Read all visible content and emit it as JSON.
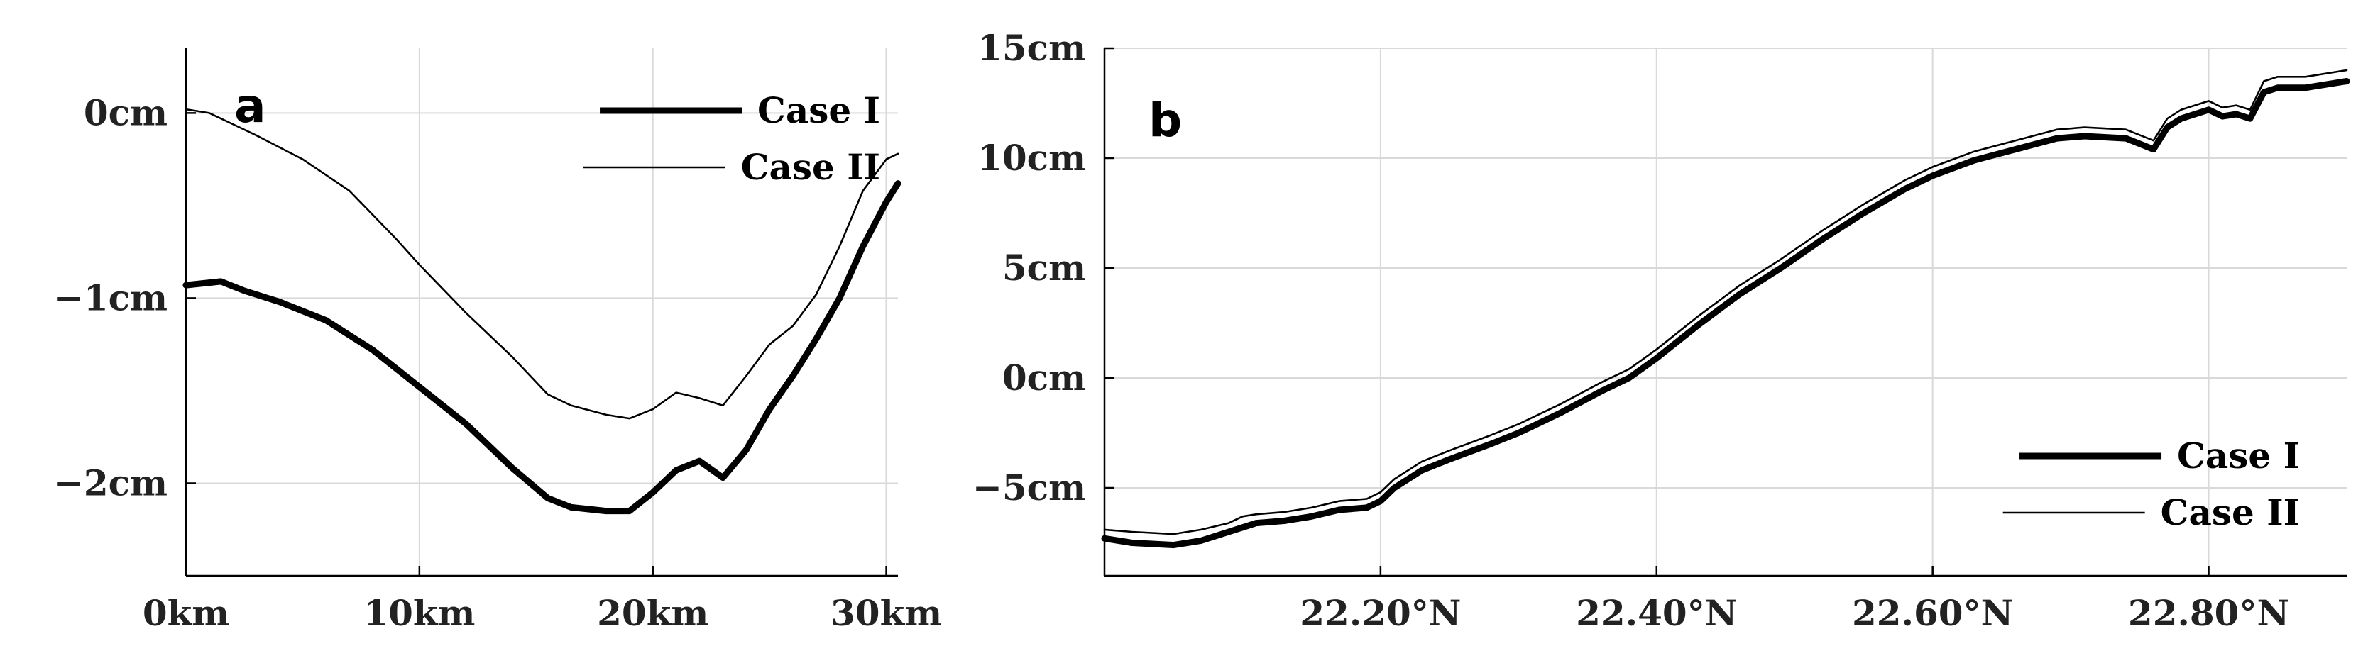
{
  "chart_data": [
    {
      "type": "line",
      "panel_label": "a",
      "xlim": [
        0,
        30.5
      ],
      "ylim": [
        -2.5,
        0.35
      ],
      "xticks": [
        0,
        10,
        20,
        30
      ],
      "xtick_labels": [
        "0km",
        "10km",
        "20km",
        "30km"
      ],
      "yticks": [
        0,
        -1,
        -2
      ],
      "ytick_labels": [
        "0cm",
        "−1cm",
        "−2cm"
      ],
      "grid": true,
      "legend_position": "top-right",
      "series": [
        {
          "name": "Case I",
          "style": "thick",
          "x": [
            0,
            1.5,
            2.5,
            4,
            6,
            8,
            10,
            12,
            14,
            15.5,
            16.5,
            18,
            19,
            20,
            21,
            22,
            23,
            24,
            25,
            26,
            27,
            28,
            29,
            30,
            30.5
          ],
          "y": [
            -0.93,
            -0.91,
            -0.96,
            -1.02,
            -1.12,
            -1.28,
            -1.48,
            -1.68,
            -1.92,
            -2.08,
            -2.13,
            -2.15,
            -2.15,
            -2.05,
            -1.93,
            -1.88,
            -1.97,
            -1.82,
            -1.6,
            -1.42,
            -1.22,
            -1.0,
            -0.72,
            -0.48,
            -0.38
          ]
        },
        {
          "name": "Case II",
          "style": "thin",
          "x": [
            0,
            1,
            2,
            3,
            5,
            7,
            9,
            10,
            12,
            14,
            15.5,
            16.5,
            18,
            19,
            20,
            21,
            22,
            23,
            24,
            25,
            26,
            27,
            28,
            29,
            30,
            30.5
          ],
          "y": [
            0.02,
            0.0,
            -0.06,
            -0.12,
            -0.25,
            -0.42,
            -0.68,
            -0.82,
            -1.08,
            -1.32,
            -1.52,
            -1.58,
            -1.63,
            -1.65,
            -1.6,
            -1.51,
            -1.54,
            -1.58,
            -1.42,
            -1.25,
            -1.15,
            -0.98,
            -0.72,
            -0.42,
            -0.25,
            -0.22
          ]
        }
      ]
    },
    {
      "type": "line",
      "panel_label": "b",
      "xlim": [
        22.0,
        22.9
      ],
      "ylim": [
        -9,
        15
      ],
      "xticks": [
        22.2,
        22.4,
        22.6,
        22.8
      ],
      "xtick_labels": [
        "22.20°N",
        "22.40°N",
        "22.60°N",
        "22.80°N"
      ],
      "yticks": [
        15,
        10,
        5,
        0,
        -5
      ],
      "ytick_labels": [
        "15cm",
        "10cm",
        "5cm",
        "0cm",
        "−5cm"
      ],
      "grid": true,
      "legend_position": "bottom-right",
      "series": [
        {
          "name": "Case I",
          "style": "thick",
          "x": [
            22.0,
            22.02,
            22.05,
            22.07,
            22.09,
            22.1,
            22.11,
            22.13,
            22.15,
            22.17,
            22.19,
            22.2,
            22.21,
            22.23,
            22.25,
            22.28,
            22.3,
            22.33,
            22.36,
            22.38,
            22.4,
            22.43,
            22.46,
            22.49,
            22.52,
            22.55,
            22.58,
            22.6,
            22.63,
            22.66,
            22.69,
            22.71,
            22.74,
            22.76,
            22.77,
            22.78,
            22.8,
            22.81,
            22.82,
            22.83,
            22.84,
            22.85,
            22.87,
            22.9
          ],
          "y": [
            -7.3,
            -7.5,
            -7.6,
            -7.4,
            -7.0,
            -6.8,
            -6.6,
            -6.5,
            -6.3,
            -6.0,
            -5.9,
            -5.6,
            -5.0,
            -4.2,
            -3.7,
            -3.0,
            -2.5,
            -1.6,
            -0.6,
            0.0,
            0.9,
            2.4,
            3.8,
            5.0,
            6.3,
            7.5,
            8.6,
            9.2,
            9.9,
            10.4,
            10.9,
            11.0,
            10.9,
            10.4,
            11.4,
            11.8,
            12.2,
            11.9,
            12.0,
            11.8,
            13.0,
            13.2,
            13.2,
            13.5
          ]
        },
        {
          "name": "Case II",
          "style": "thin",
          "x": [
            22.0,
            22.02,
            22.05,
            22.07,
            22.09,
            22.1,
            22.11,
            22.13,
            22.15,
            22.17,
            22.19,
            22.2,
            22.21,
            22.23,
            22.25,
            22.28,
            22.3,
            22.33,
            22.36,
            22.38,
            22.4,
            22.43,
            22.46,
            22.49,
            22.52,
            22.55,
            22.58,
            22.6,
            22.63,
            22.66,
            22.69,
            22.71,
            22.74,
            22.76,
            22.77,
            22.78,
            22.8,
            22.81,
            22.82,
            22.83,
            22.84,
            22.85,
            22.87,
            22.9
          ],
          "y": [
            -6.9,
            -7.0,
            -7.1,
            -6.9,
            -6.6,
            -6.3,
            -6.2,
            -6.1,
            -5.9,
            -5.6,
            -5.5,
            -5.2,
            -4.6,
            -3.8,
            -3.3,
            -2.6,
            -2.1,
            -1.2,
            -0.2,
            0.4,
            1.3,
            2.8,
            4.2,
            5.4,
            6.7,
            7.9,
            9.0,
            9.6,
            10.3,
            10.8,
            11.3,
            11.4,
            11.3,
            10.8,
            11.8,
            12.2,
            12.6,
            12.3,
            12.4,
            12.2,
            13.5,
            13.7,
            13.7,
            14.0
          ]
        }
      ]
    }
  ]
}
